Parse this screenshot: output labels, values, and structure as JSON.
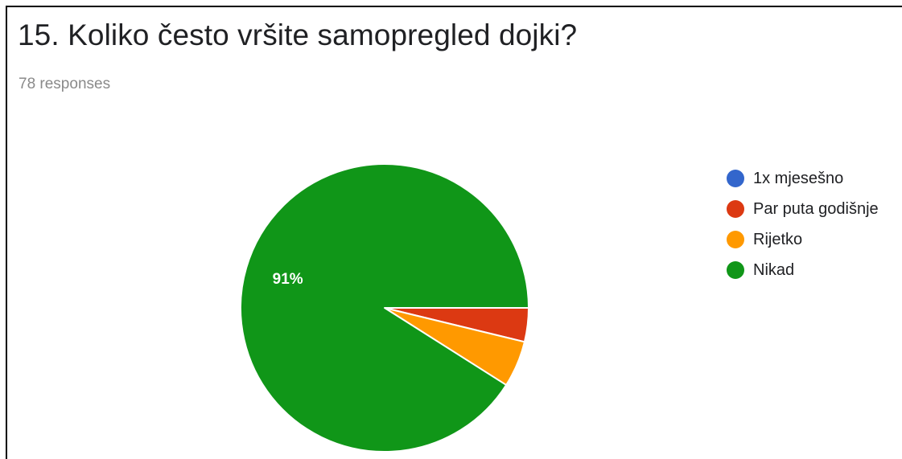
{
  "title": "15. Koliko često vršite samopregled dojki?",
  "responses_label": "78 responses",
  "chart_data": {
    "type": "pie",
    "title": "15. Koliko često vršite samopregled dojki?",
    "total_responses": 78,
    "categories": [
      "1x mjesešno",
      "Par puta godišnje",
      "Rijetko",
      "Nikad"
    ],
    "values": [
      0,
      3.8,
      5.2,
      91
    ],
    "value_unit": "%",
    "colors": [
      "#3366cc",
      "#dc3912",
      "#ff9900",
      "#109618"
    ],
    "data_labels": [
      "",
      "",
      "",
      "91%"
    ],
    "legend": {
      "position": "right",
      "items": [
        "1x mjesešno",
        "Par puta godišnje",
        "Rijetko",
        "Nikad"
      ]
    }
  }
}
